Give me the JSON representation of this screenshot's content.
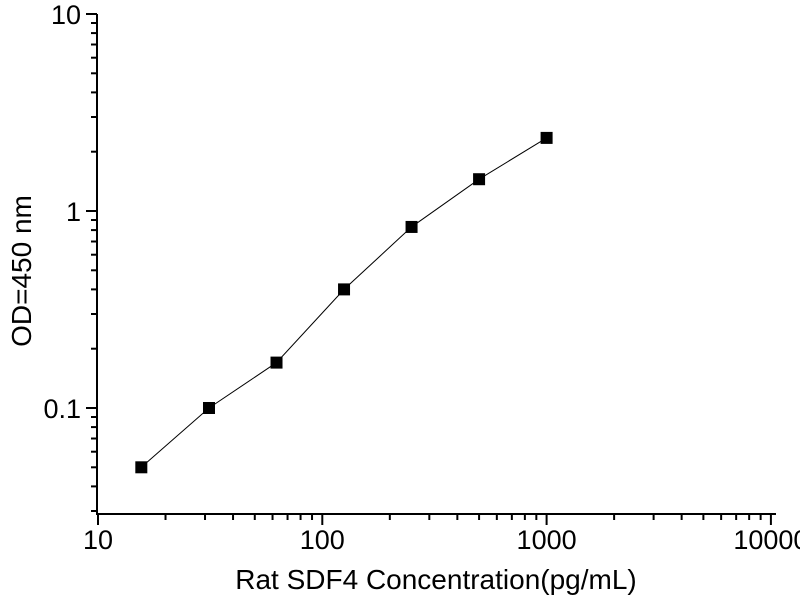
{
  "chart_data": {
    "type": "line",
    "title": "",
    "xlabel": "Rat SDF4 Concentration(pg/mL)",
    "ylabel": "OD=450 nm",
    "xscale": "log",
    "yscale": "log",
    "xlim": [
      10,
      10000
    ],
    "ylim": [
      0.03,
      10
    ],
    "grid": "off",
    "legend": "none",
    "marker": "filled-square",
    "x": [
      15.6,
      31.25,
      62.5,
      125,
      250,
      500,
      1000
    ],
    "y": [
      0.05,
      0.1,
      0.17,
      0.4,
      0.83,
      1.45,
      2.35
    ],
    "x_ticks": {
      "values": [
        10,
        100,
        1000,
        10000
      ],
      "labels": [
        "10",
        "100",
        "1000",
        "10000"
      ]
    },
    "y_ticks": {
      "values": [
        0.1,
        1,
        10
      ],
      "labels": [
        "0.1",
        "1",
        "10"
      ]
    },
    "colors": {
      "axis": "#000000",
      "line": "#000000",
      "marker": "#000000",
      "text": "#000000",
      "background": "#ffffff"
    }
  }
}
